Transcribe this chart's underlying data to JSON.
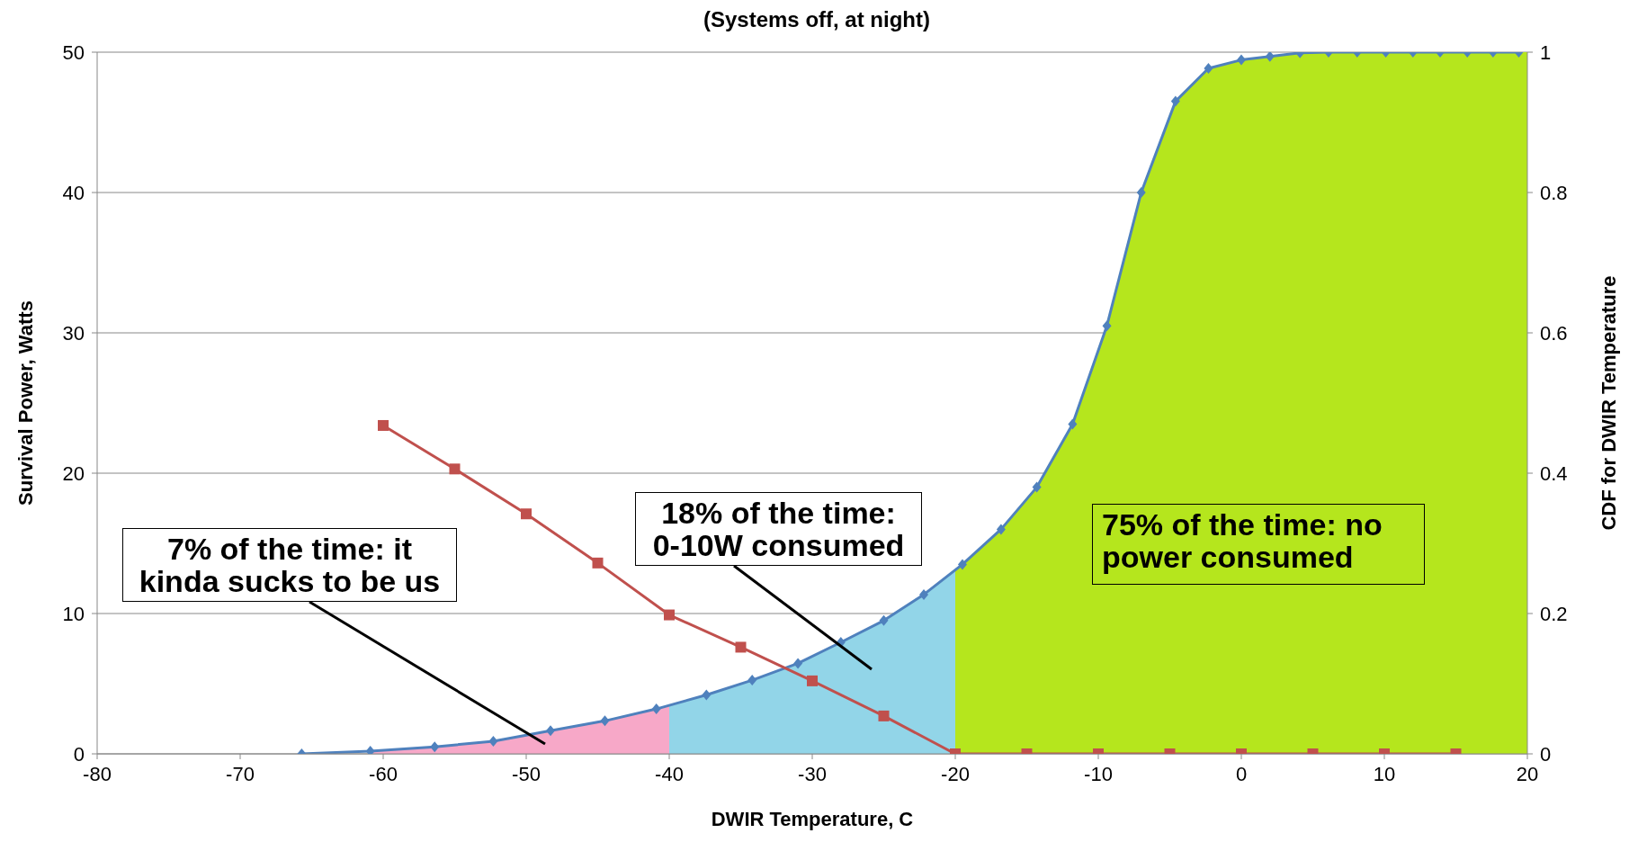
{
  "chart_data": {
    "type": "line",
    "title": "(Systems off, at night)",
    "xlabel": "DWIR Temperature, C",
    "ylabel": "Survival Power, Watts",
    "y2label": "CDF for DWIR Temperature",
    "xlim": [
      -80,
      20
    ],
    "xticks": [
      -80,
      -70,
      -60,
      -50,
      -40,
      -30,
      -20,
      -10,
      0,
      10,
      20
    ],
    "ylim": [
      0,
      50
    ],
    "yticks": [
      0,
      10,
      20,
      30,
      40,
      50
    ],
    "y2lim": [
      0,
      1
    ],
    "y2ticks": [
      0,
      0.2,
      0.4,
      0.6,
      0.8,
      1
    ],
    "grid": "y",
    "series": [
      {
        "type": "area",
        "axis": "y2",
        "color": "#f7a8c8",
        "x": [
          -61,
          -56.4,
          -52.3,
          -48.3,
          -44.5,
          -40.9,
          -40
        ],
        "values": [
          0.004,
          0.01,
          0.018,
          0.033,
          0.047,
          0.064,
          0.068
        ]
      },
      {
        "type": "area",
        "axis": "y2",
        "color": "#92d5e8",
        "x": [
          -40,
          -37.4,
          -34.2,
          -31,
          -28,
          -25,
          -22.2,
          -20
        ],
        "values": [
          0.068,
          0.084,
          0.105,
          0.129,
          0.159,
          0.19,
          0.227,
          0.262
        ]
      },
      {
        "type": "area",
        "axis": "y2",
        "color": "#b5e61d",
        "x": [
          -20,
          -19.5,
          -16.8,
          -14.3,
          -11.8,
          -9.4,
          -7,
          -4.6,
          -2.3,
          0,
          2,
          4.1,
          6.1,
          8.1,
          10.1,
          12,
          13.9,
          15.8,
          17.6,
          19.4,
          20
        ],
        "values": [
          0.262,
          0.27,
          0.32,
          0.38,
          0.47,
          0.61,
          0.8,
          0.93,
          0.977,
          0.989,
          0.994,
          0.999,
          1,
          1,
          1,
          1,
          1,
          1,
          1,
          1,
          1
        ]
      },
      {
        "type": "line",
        "axis": "y2",
        "color": "#4f81bd",
        "marker": "diamond",
        "x": [
          -65.7,
          -60.9,
          -56.4,
          -52.3,
          -48.3,
          -44.5,
          -40.9,
          -37.4,
          -34.2,
          -31,
          -28,
          -25,
          -22.2,
          -19.5,
          -16.8,
          -14.3,
          -11.8,
          -9.4,
          -7,
          -4.6,
          -2.3,
          0,
          2,
          4.1,
          6.1,
          8.1,
          10.1,
          12,
          13.9,
          15.8,
          17.6,
          19.4
        ],
        "values": [
          0,
          0.004,
          0.01,
          0.018,
          0.033,
          0.047,
          0.064,
          0.084,
          0.105,
          0.129,
          0.159,
          0.19,
          0.227,
          0.27,
          0.32,
          0.38,
          0.47,
          0.61,
          0.8,
          0.93,
          0.977,
          0.989,
          0.994,
          0.999,
          1,
          1,
          1,
          1,
          1,
          1,
          1,
          1
        ]
      },
      {
        "type": "line",
        "color": "#c0504d",
        "marker": "square",
        "x": [
          -60,
          -55,
          -50,
          -45,
          -40,
          -35,
          -30,
          -25,
          -20,
          -15,
          -10,
          -5,
          0,
          5,
          10,
          15
        ],
        "values": [
          23.4,
          20.3,
          17.1,
          13.6,
          9.9,
          7.6,
          5.2,
          2.7,
          0,
          0,
          0,
          0,
          0,
          0,
          0,
          0
        ]
      }
    ],
    "annotations": [
      "7% of the time: it kinda sucks to be us",
      "18% of the time: 0-10W consumed",
      "75% of the time: no power consumed"
    ]
  }
}
